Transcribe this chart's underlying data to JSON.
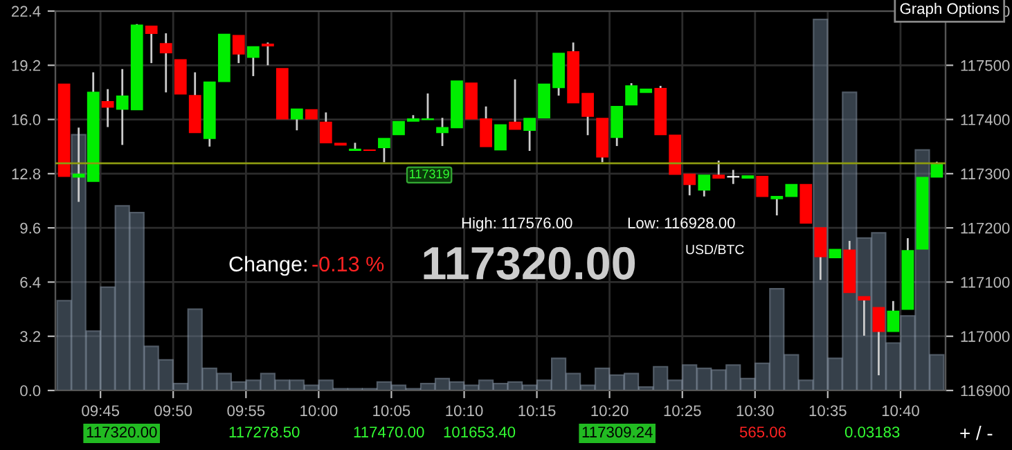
{
  "chart_data": {
    "type": "candlestick",
    "x": [
      9.7083,
      9.725,
      9.7417,
      9.7583,
      9.775,
      9.7917,
      9.8083,
      9.825,
      9.8417,
      9.8583,
      9.875,
      9.8917,
      9.9083,
      9.925,
      9.9417,
      9.9583,
      9.975,
      9.9917,
      10.0083,
      10.025,
      10.0417,
      10.0583,
      10.075,
      10.0917,
      10.1083,
      10.125,
      10.1417,
      10.1583,
      10.175,
      10.1917,
      10.2083,
      10.225,
      10.2417,
      10.2583,
      10.275,
      10.2917,
      10.3083,
      10.325,
      10.3417,
      10.3583,
      10.375,
      10.3917,
      10.4083,
      10.425,
      10.4417,
      10.4583,
      10.475,
      10.4917,
      10.5083,
      10.525,
      10.5417,
      10.5583,
      10.575,
      10.5917,
      10.6083,
      10.625,
      10.6417,
      10.6583,
      10.675,
      10.6917,
      10.7083
    ],
    "series": [
      {
        "type": "bar",
        "color": "#5b6b7c",
        "values": [
          5.3,
          15.1,
          3.5,
          6.1,
          10.9,
          10.5,
          2.6,
          1.8,
          0.4,
          4.8,
          1.3,
          1.0,
          0.5,
          0.6,
          1.0,
          0.6,
          0.6,
          0.3,
          0.6,
          0.1,
          0.1,
          0.1,
          0.5,
          0.3,
          0.1,
          0.4,
          0.7,
          0.5,
          0.3,
          0.6,
          0.4,
          0.5,
          0.3,
          0.6,
          1.9,
          1.0,
          0.3,
          1.3,
          0.9,
          1.0,
          0.2,
          1.4,
          0.6,
          1.5,
          1.3,
          1.2,
          1.5,
          0.7,
          1.6,
          6.0,
          2.1,
          0.6,
          21.9,
          1.9,
          17.6,
          9.0,
          9.3,
          2.8,
          4.4,
          14.2,
          2.1
        ]
      },
      {
        "axis": "y2",
        "ohlc": [
          [
            117465,
            117465,
            117295,
            117295
          ],
          [
            117294,
            117385,
            117248,
            117299
          ],
          [
            117286,
            117487,
            117286,
            117450
          ],
          [
            117433,
            117456,
            117386,
            117423
          ],
          [
            117419,
            117493,
            117353,
            117443
          ],
          [
            117418,
            117576,
            117418,
            117574
          ],
          [
            117572,
            117572,
            117504,
            117559
          ],
          [
            117540,
            117559,
            117450,
            117523
          ],
          [
            117510,
            117510,
            117447,
            117447
          ],
          [
            117444,
            117487,
            117376,
            117376
          ],
          [
            117365,
            117469,
            117350,
            117469
          ],
          [
            117470,
            117557,
            117470,
            117557
          ],
          [
            117555,
            117555,
            117504,
            117521
          ],
          [
            117515,
            117534,
            117480,
            117534
          ],
          [
            117539,
            117542,
            117500,
            117536
          ],
          [
            117494,
            117494,
            117401,
            117401
          ],
          [
            117401,
            117419,
            117380,
            117419
          ],
          [
            117418,
            117418,
            117401,
            117401
          ],
          [
            117395,
            117413,
            117357,
            117357
          ],
          [
            117356,
            117356,
            117353,
            117353
          ],
          [
            117343,
            117357,
            117343,
            117345
          ],
          [
            117343,
            117343,
            117343,
            117343
          ],
          [
            117348,
            117365,
            117321,
            117365
          ],
          [
            117372,
            117396,
            117372,
            117396
          ],
          [
            117397,
            117408,
            117397,
            117401
          ],
          [
            117400,
            117448,
            117400,
            117401
          ],
          [
            117376,
            117403,
            117351,
            117385
          ],
          [
            117385,
            117471,
            117385,
            117471
          ],
          [
            117467,
            117467,
            117401,
            117401
          ],
          [
            117401,
            117424,
            117350,
            117350
          ],
          [
            117344,
            117390,
            117344,
            117390
          ],
          [
            117395,
            117474,
            117382,
            117382
          ],
          [
            117380,
            117402,
            117342,
            117402
          ],
          [
            117403,
            117465,
            117403,
            117465
          ],
          [
            117459,
            117522,
            117444,
            117522
          ],
          [
            117525,
            117542,
            117431,
            117431
          ],
          [
            117448,
            117448,
            117371,
            117406
          ],
          [
            117402,
            117402,
            117321,
            117331
          ],
          [
            117367,
            117424,
            117351,
            117424
          ],
          [
            117427,
            117467,
            117427,
            117462
          ],
          [
            117450,
            117456,
            117450,
            117456
          ],
          [
            117457,
            117462,
            117372,
            117372
          ],
          [
            117371,
            117371,
            117299,
            117299
          ],
          [
            117299,
            117299,
            117260,
            117280
          ],
          [
            117270,
            117297,
            117258,
            117297
          ],
          [
            117297,
            117324,
            117292,
            117292
          ],
          [
            117294,
            117307,
            117281,
            117294
          ],
          [
            117292,
            117296,
            117292,
            117296
          ],
          [
            117295,
            117295,
            117258,
            117258
          ],
          [
            117254,
            117258,
            117223,
            117258
          ],
          [
            117258,
            117280,
            117258,
            117280
          ],
          [
            117280,
            117280,
            117209,
            117209
          ],
          [
            117200,
            117200,
            117104,
            117147
          ],
          [
            117145,
            117160,
            117145,
            117160
          ],
          [
            117159,
            117176,
            117081,
            117081
          ],
          [
            117073,
            117073,
            117001,
            117067
          ],
          [
            117053,
            117053,
            116928,
            117009
          ],
          [
            117009,
            117065,
            117009,
            117046
          ],
          [
            117050,
            117181,
            117050,
            117158
          ],
          [
            117161,
            117293,
            117161,
            117293
          ],
          [
            117294,
            117322,
            117294,
            117319
          ]
        ],
        "colors": [
          "#ff0000",
          "#00ee00",
          "#00ee00",
          "#ff0000",
          "#00ee00",
          "#00ee00",
          "#ff0000",
          "#ff0000",
          "#ff0000",
          "#ff0000",
          "#00ee00",
          "#00ee00",
          "#ff0000",
          "#00ee00",
          "#ff0000",
          "#ff0000",
          "#00ee00",
          "#ff0000",
          "#ff0000",
          "#ff0000",
          "#00ee00",
          "#ff0000",
          "#00ee00",
          "#00ee00",
          "#00ee00",
          "#00ee00",
          "#00ee00",
          "#00ee00",
          "#ff0000",
          "#ff0000",
          "#00ee00",
          "#ff0000",
          "#00ee00",
          "#00ee00",
          "#00ee00",
          "#ff0000",
          "#ff0000",
          "#ff0000",
          "#00ee00",
          "#00ee00",
          "#00ee00",
          "#ff0000",
          "#ff0000",
          "#ff0000",
          "#00ee00",
          "#ff0000",
          "#ffffff",
          "#00ee00",
          "#ff0000",
          "#00ee00",
          "#00ee00",
          "#ff0000",
          "#ff0000",
          "#00ee00",
          "#ff0000",
          "#ff0000",
          "#ff0000",
          "#00ee00",
          "#00ee00",
          "#00ee00",
          "#00ee00"
        ]
      }
    ],
    "xlim": [
      9.6983,
      10.7183
    ],
    "xticks": [
      {
        "value": 9.75,
        "label": "09:45"
      },
      {
        "value": 9.8333,
        "label": "09:50"
      },
      {
        "value": 9.9167,
        "label": "09:55"
      },
      {
        "value": 10,
        "label": "10:00"
      },
      {
        "value": 10.0833,
        "label": "10:05"
      },
      {
        "value": 10.1667,
        "label": "10:10"
      },
      {
        "value": 10.25,
        "label": "10:15"
      },
      {
        "value": 10.3333,
        "label": "10:20"
      },
      {
        "value": 10.4167,
        "label": "10:25"
      },
      {
        "value": 10.5,
        "label": "10:30"
      },
      {
        "value": 10.5833,
        "label": "10:35"
      },
      {
        "value": 10.6667,
        "label": "10:40"
      }
    ],
    "ylim": [
      0,
      22.4
    ],
    "yticks": [
      {
        "value": 0,
        "label": "0.0"
      },
      {
        "value": 3.2,
        "label": "3.2"
      },
      {
        "value": 6.4,
        "label": "6.4"
      },
      {
        "value": 9.6,
        "label": "9.6"
      },
      {
        "value": 12.8,
        "label": "12.8"
      },
      {
        "value": 16,
        "label": "16.0"
      },
      {
        "value": 19.2,
        "label": "19.2"
      },
      {
        "value": 22.4,
        "label": "22.4"
      }
    ],
    "y2lim": [
      116900,
      117600
    ],
    "y2ticks": [
      116900,
      117000,
      117100,
      117200,
      117300,
      117400,
      117500,
      117600
    ],
    "ref_lines": [
      {
        "axis": "y2",
        "value": 117319,
        "label": "117319",
        "color": "#8c9a10"
      }
    ],
    "grid": true,
    "annotations": [
      "Change:",
      "-0.13 %",
      "High: 117576.00",
      "Low: 116928.00",
      "117320.00",
      "USD/BTC",
      "Graph Options",
      "117320.00",
      "117278.50",
      "117470.00",
      "101653.40",
      "117309.24",
      "565.06",
      "0.03183",
      "+ / -"
    ]
  }
}
